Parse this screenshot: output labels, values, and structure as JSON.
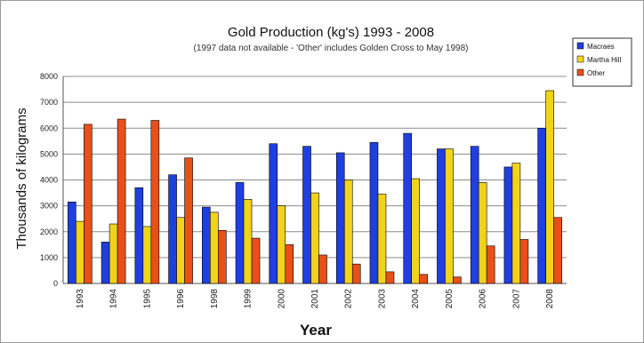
{
  "chart_data": {
    "type": "bar",
    "title": "Gold Production (kg's) 1993 - 2008",
    "subtitle": "(1997 data not available - 'Other' includes Golden Cross to May 1998)",
    "xlabel": "Year",
    "ylabel": "Thousands of kilograms",
    "ylim": [
      0,
      8000
    ],
    "yticks": [
      "0",
      "1000",
      "2000",
      "3000",
      "4000",
      "5000",
      "6000",
      "7000",
      "8000"
    ],
    "grid": true,
    "legend_position": "top-right",
    "categories": [
      "1993",
      "1994",
      "1995",
      "1996",
      "1998",
      "1999",
      "2000",
      "2001",
      "2002",
      "2003",
      "2004",
      "2005",
      "2006",
      "2007",
      "2008"
    ],
    "series": [
      {
        "name": "Macraes",
        "color": "#1f3fe0",
        "values": [
          3150,
          1600,
          3700,
          4200,
          2950,
          3900,
          5400,
          5300,
          5050,
          5450,
          5800,
          5200,
          5300,
          4500,
          6000
        ]
      },
      {
        "name": "Martha Hill",
        "color": "#f2d21a",
        "values": [
          2400,
          2300,
          2200,
          2550,
          2750,
          3250,
          3000,
          3500,
          4000,
          3450,
          4050,
          5200,
          3900,
          4650,
          7450
        ]
      },
      {
        "name": "Other",
        "color": "#e8501a",
        "values": [
          6150,
          6350,
          6300,
          4850,
          2050,
          1750,
          1500,
          1100,
          750,
          450,
          350,
          250,
          1450,
          1700,
          2550
        ]
      }
    ]
  }
}
